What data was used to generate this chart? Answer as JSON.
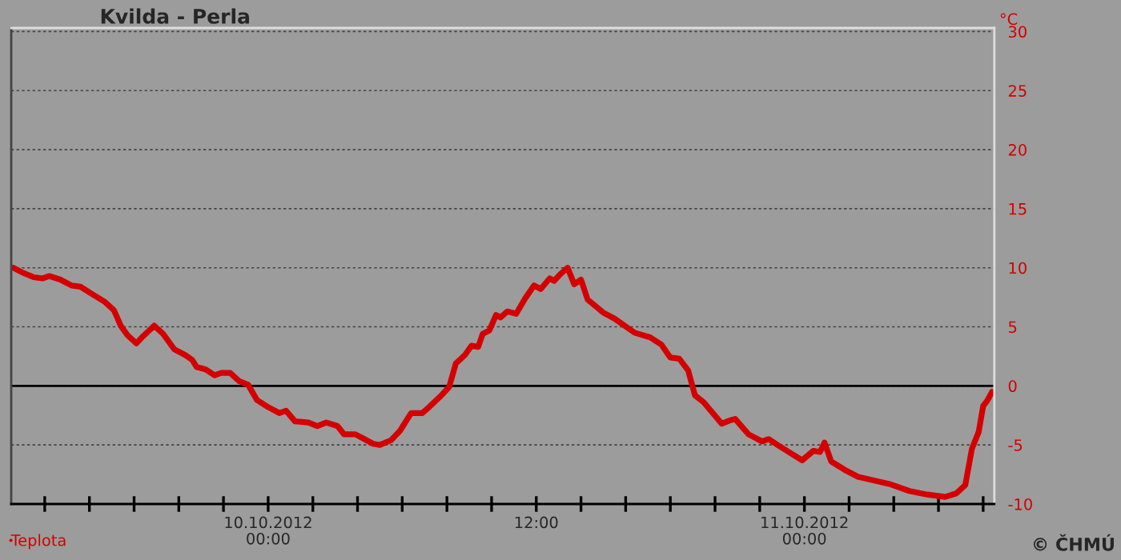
{
  "chart_data": {
    "type": "line",
    "title": "Kvilda - Perla",
    "ylabel": "°C",
    "annotations": [
      "© ČHMÚ"
    ],
    "xlim": [
      "2012-10-09T12:30",
      "2012-10-11T08:30"
    ],
    "ylim": [
      -10,
      30.3
    ],
    "xticks": [
      {
        "value": "2012-10-09T14:00",
        "label": null
      },
      {
        "value": "2012-10-09T16:00",
        "label": null
      },
      {
        "value": "2012-10-09T18:00",
        "label": null
      },
      {
        "value": "2012-10-09T20:00",
        "label": null
      },
      {
        "value": "2012-10-09T22:00",
        "label": null
      },
      {
        "value": "2012-10-10T00:00",
        "label": "10.10.2012\n00:00"
      },
      {
        "value": "2012-10-10T02:00",
        "label": null
      },
      {
        "value": "2012-10-10T04:00",
        "label": null
      },
      {
        "value": "2012-10-10T06:00",
        "label": null
      },
      {
        "value": "2012-10-10T08:00",
        "label": null
      },
      {
        "value": "2012-10-10T10:00",
        "label": null
      },
      {
        "value": "2012-10-10T12:00",
        "label": "12:00"
      },
      {
        "value": "2012-10-10T14:00",
        "label": null
      },
      {
        "value": "2012-10-10T16:00",
        "label": null
      },
      {
        "value": "2012-10-10T18:00",
        "label": null
      },
      {
        "value": "2012-10-10T20:00",
        "label": null
      },
      {
        "value": "2012-10-10T22:00",
        "label": null
      },
      {
        "value": "2012-10-11T00:00",
        "label": "11.10.2012\n00:00"
      },
      {
        "value": "2012-10-11T02:00",
        "label": null
      },
      {
        "value": "2012-10-11T04:00",
        "label": null
      },
      {
        "value": "2012-10-11T06:00",
        "label": null
      },
      {
        "value": "2012-10-11T08:00",
        "label": null
      }
    ],
    "yticks": [
      -10,
      -5,
      0,
      5,
      10,
      15,
      20,
      25,
      30
    ],
    "grid": "y",
    "legend": "bottom left",
    "marker": "none",
    "line_style": "solid",
    "ref_lines": [
      {
        "axis": "y",
        "value": 0,
        "color": "#000000"
      }
    ],
    "series": [
      {
        "name": "Teplota",
        "color": "#d40000",
        "x": [
          "2012-10-09T12:36",
          "2012-10-09T13:00",
          "2012-10-09T13:30",
          "2012-10-09T13:54",
          "2012-10-09T14:12",
          "2012-10-09T14:42",
          "2012-10-09T15:12",
          "2012-10-09T15:36",
          "2012-10-09T16:06",
          "2012-10-09T16:42",
          "2012-10-09T17:06",
          "2012-10-09T17:24",
          "2012-10-09T17:42",
          "2012-10-09T18:06",
          "2012-10-09T18:24",
          "2012-10-09T18:54",
          "2012-10-09T19:18",
          "2012-10-09T19:48",
          "2012-10-09T20:18",
          "2012-10-09T20:36",
          "2012-10-09T20:48",
          "2012-10-09T21:12",
          "2012-10-09T21:36",
          "2012-10-09T21:54",
          "2012-10-09T22:18",
          "2012-10-09T22:42",
          "2012-10-09T23:06",
          "2012-10-09T23:30",
          "2012-10-10T00:00",
          "2012-10-10T00:30",
          "2012-10-10T00:48",
          "2012-10-10T01:12",
          "2012-10-10T01:48",
          "2012-10-10T02:12",
          "2012-10-10T02:36",
          "2012-10-10T03:06",
          "2012-10-10T03:24",
          "2012-10-10T03:54",
          "2012-10-10T04:18",
          "2012-10-10T04:42",
          "2012-10-10T05:00",
          "2012-10-10T05:30",
          "2012-10-10T05:54",
          "2012-10-10T06:24",
          "2012-10-10T06:54",
          "2012-10-10T07:12",
          "2012-10-10T07:42",
          "2012-10-10T08:06",
          "2012-10-10T08:24",
          "2012-10-10T08:48",
          "2012-10-10T09:06",
          "2012-10-10T09:24",
          "2012-10-10T09:36",
          "2012-10-10T09:54",
          "2012-10-10T10:12",
          "2012-10-10T10:24",
          "2012-10-10T10:42",
          "2012-10-10T11:06",
          "2012-10-10T11:30",
          "2012-10-10T11:54",
          "2012-10-10T12:12",
          "2012-10-10T12:36",
          "2012-10-10T12:48",
          "2012-10-10T13:06",
          "2012-10-10T13:24",
          "2012-10-10T13:42",
          "2012-10-10T14:00",
          "2012-10-10T14:18",
          "2012-10-10T15:00",
          "2012-10-10T15:30",
          "2012-10-10T16:24",
          "2012-10-10T17:06",
          "2012-10-10T17:36",
          "2012-10-10T18:00",
          "2012-10-10T18:24",
          "2012-10-10T18:48",
          "2012-10-10T19:06",
          "2012-10-10T19:30",
          "2012-10-10T20:18",
          "2012-10-10T20:42",
          "2012-10-10T20:54",
          "2012-10-10T21:30",
          "2012-10-10T22:06",
          "2012-10-10T22:24",
          "2012-10-10T22:48",
          "2012-10-10T23:18",
          "2012-10-10T23:54",
          "2012-10-11T00:24",
          "2012-10-11T00:42",
          "2012-10-11T00:54",
          "2012-10-11T01:12",
          "2012-10-11T01:48",
          "2012-10-11T02:24",
          "2012-10-11T03:06",
          "2012-10-11T03:48",
          "2012-10-11T04:42",
          "2012-10-11T05:30",
          "2012-10-11T06:18",
          "2012-10-11T06:48",
          "2012-10-11T07:12",
          "2012-10-11T07:30",
          "2012-10-11T07:48",
          "2012-10-11T08:00",
          "2012-10-11T08:12",
          "2012-10-11T08:24"
        ],
        "values": [
          10.0,
          9.6,
          9.2,
          9.1,
          9.3,
          9.0,
          8.5,
          8.4,
          7.8,
          7.1,
          6.4,
          5.1,
          4.3,
          3.6,
          4.2,
          5.1,
          4.4,
          3.1,
          2.6,
          2.2,
          1.6,
          1.4,
          0.9,
          1.1,
          1.1,
          0.4,
          0.1,
          -1.2,
          -1.8,
          -2.3,
          -2.1,
          -3.0,
          -3.1,
          -3.4,
          -3.1,
          -3.4,
          -4.1,
          -4.1,
          -4.5,
          -4.9,
          -5.0,
          -4.6,
          -3.8,
          -2.3,
          -2.3,
          -1.8,
          -0.9,
          -0.1,
          1.9,
          2.6,
          3.4,
          3.3,
          4.4,
          4.7,
          6.0,
          5.8,
          6.3,
          6.1,
          7.4,
          8.5,
          8.2,
          9.1,
          8.9,
          9.5,
          10.0,
          8.6,
          9.0,
          7.3,
          6.2,
          5.7,
          4.5,
          4.1,
          3.5,
          2.4,
          2.3,
          1.3,
          -0.8,
          -1.4,
          -3.2,
          -2.9,
          -2.8,
          -4.1,
          -4.7,
          -4.5,
          -5.0,
          -5.6,
          -6.3,
          -5.5,
          -5.6,
          -4.8,
          -6.4,
          -7.1,
          -7.7,
          -8.0,
          -8.3,
          -8.9,
          -9.2,
          -9.4,
          -9.1,
          -8.4,
          -5.3,
          -3.9,
          -1.7,
          -1.2,
          -0.5
        ]
      }
    ]
  }
}
